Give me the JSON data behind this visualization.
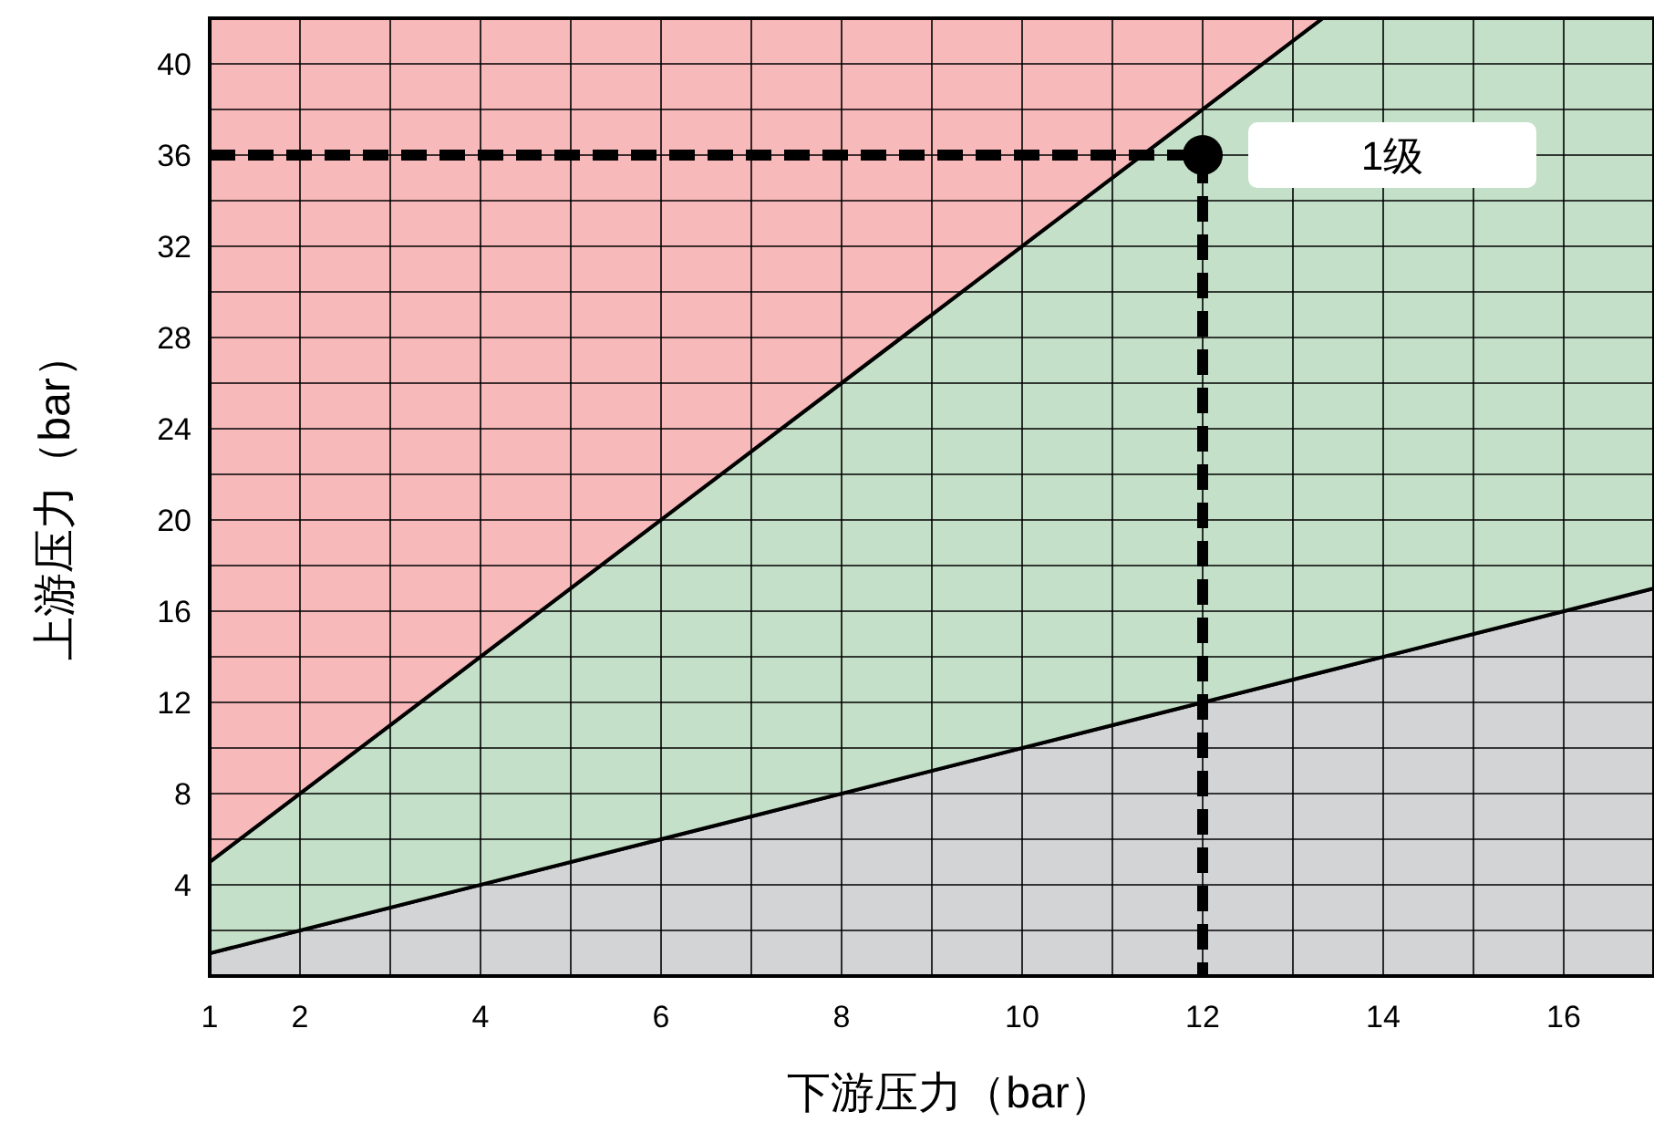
{
  "chart_data": {
    "type": "area",
    "stacked": true,
    "xlabel": "下游压力（bar）",
    "ylabel": "上游压力（bar）",
    "xlim": [
      1,
      17
    ],
    "ylim": [
      0,
      42
    ],
    "xticks": [
      1,
      2,
      {
        "value": 3,
        "label": null
      },
      4,
      {
        "value": 5,
        "label": null
      },
      6,
      {
        "value": 7,
        "label": null
      },
      8,
      {
        "value": 9,
        "label": null
      },
      10,
      {
        "value": 11,
        "label": null
      },
      12,
      {
        "value": 13,
        "label": null
      },
      14,
      {
        "value": 15,
        "label": null
      },
      16,
      {
        "value": 17,
        "label": null
      }
    ],
    "yticks": [
      {
        "value": 2,
        "label": null
      },
      4,
      {
        "value": 6,
        "label": null
      },
      8,
      {
        "value": 10,
        "label": null
      },
      12,
      {
        "value": 14,
        "label": null
      },
      16,
      {
        "value": 18,
        "label": null
      },
      20,
      {
        "value": 22,
        "label": null
      },
      24,
      {
        "value": 26,
        "label": null
      },
      28,
      {
        "value": 30,
        "label": null
      },
      32,
      {
        "value": 34,
        "label": null
      },
      36,
      {
        "value": 38,
        "label": null
      },
      40
    ],
    "grid": true,
    "series": [
      {
        "color": "#d3d4d6",
        "x": [
          1,
          13.33,
          17
        ],
        "values": [
          1,
          13.33,
          17
        ]
      },
      {
        "color": "#c4e0c8",
        "x": [
          1,
          13.33,
          17
        ],
        "values": [
          4,
          28.67,
          25
        ]
      },
      {
        "color": "#f7b9ba",
        "x": [
          1,
          13.33,
          17
        ],
        "values": [
          37,
          0,
          0
        ]
      },
      {
        "type": "line",
        "color": "#000000",
        "line_style": "dashed",
        "x": [
          1,
          12,
          12
        ],
        "values": [
          36,
          36,
          0
        ]
      },
      {
        "type": "scatter",
        "color": "#000000",
        "marker": "circle",
        "x": [
          12
        ],
        "values": [
          36
        ]
      }
    ],
    "annotations": [
      "1级"
    ]
  }
}
